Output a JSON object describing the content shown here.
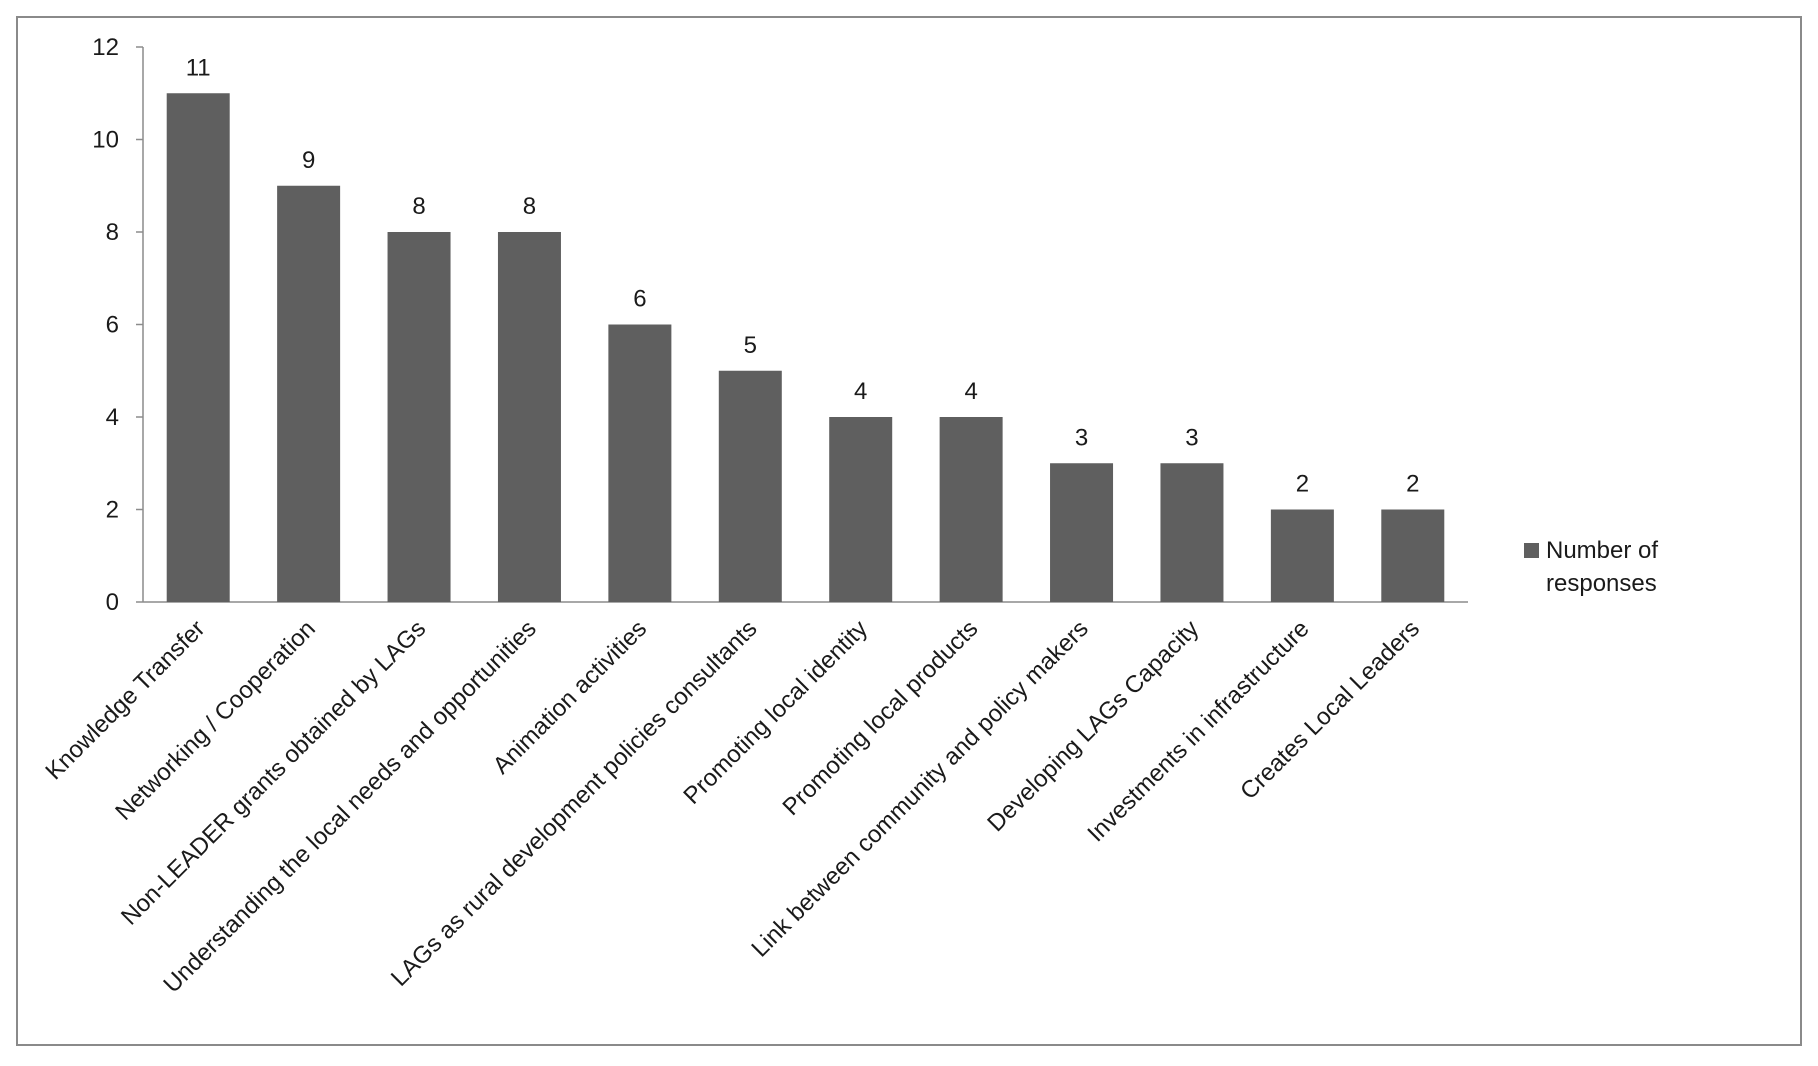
{
  "chart_data": {
    "type": "bar",
    "categories": [
      "Knowledge Transfer",
      "Networking / Cooperation",
      "Non-LEADER grants obtained by LAGs",
      "Understanding the local needs and opportunities",
      "Animation activities",
      "LAGs as rural development policies consultants",
      "Promoting local identity",
      "Promoting local products",
      "Link between community and policy makers",
      "Developing LAGs Capacity",
      "Investments in infrastructure",
      "Creates Local Leaders"
    ],
    "series": [
      {
        "name": "Number of responses",
        "values": [
          11,
          9,
          8,
          8,
          6,
          5,
          4,
          4,
          3,
          3,
          2,
          2
        ],
        "color": "#5f5f5f"
      }
    ],
    "data_labels": [
      "11",
      "9",
      "8",
      "8",
      "6",
      "5",
      "4",
      "4",
      "3",
      "3",
      "2",
      "2"
    ],
    "y_ticks": [
      "0",
      "2",
      "4",
      "6",
      "8",
      "10",
      "12"
    ],
    "ylim": [
      0,
      12
    ],
    "title": "",
    "xlabel": "",
    "ylabel": "",
    "legend": {
      "placement": "right",
      "line1": "Number of",
      "line2": "responses"
    },
    "grid": false
  }
}
